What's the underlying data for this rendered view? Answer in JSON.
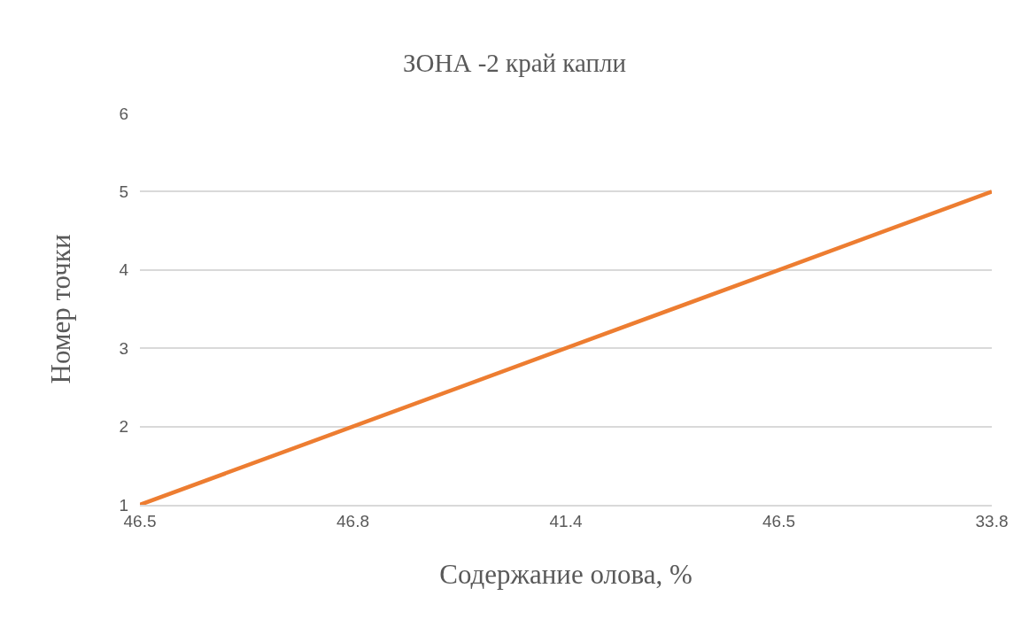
{
  "chart_data": {
    "type": "line",
    "title": "ЗОНА -2 край капли",
    "xlabel": "Содержание олова, %",
    "ylabel": "Номер точки",
    "categories": [
      "46.5",
      "46.8",
      "41.4",
      "46.5",
      "33.8"
    ],
    "series": [
      {
        "color": "#ed7d31",
        "values": [
          1,
          2,
          3,
          4,
          5
        ]
      }
    ],
    "ylim": [
      1,
      6
    ],
    "yticks": [
      1,
      2,
      3,
      4,
      5,
      6
    ],
    "grid": "y",
    "legend": false,
    "marker": "none",
    "line_style": "solid"
  }
}
